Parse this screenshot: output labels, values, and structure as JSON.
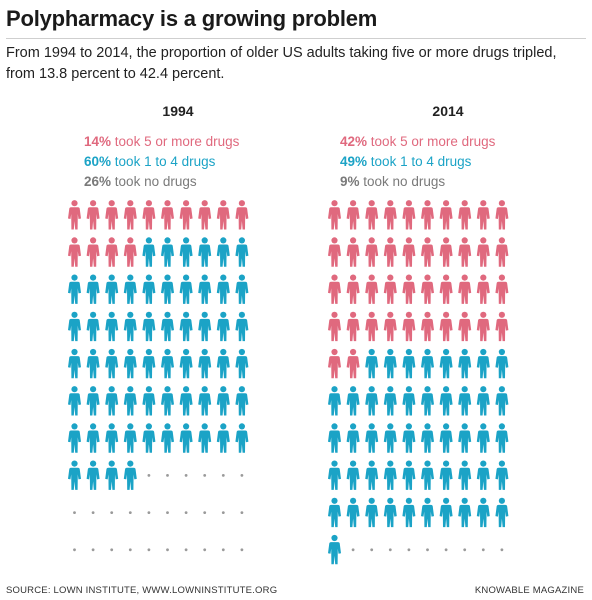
{
  "title": "Polypharmacy is a growing problem",
  "subtitle": "From 1994 to 2014, the proportion of older US adults taking five or more drugs tripled, from 13.8 percent to 42.4 percent.",
  "colors": {
    "five_plus": "#e0697e",
    "one_to_four": "#1ba3c6",
    "none": "#7a7a7a",
    "dot": "#9a9a9a"
  },
  "chart_data": [
    {
      "type": "pictogram",
      "title": "1994",
      "categories": [
        "took 5 or more drugs",
        "took 1 to 4 drugs",
        "took no drugs"
      ],
      "labels": [
        "14%",
        "60%",
        "26%"
      ],
      "values": [
        14,
        60,
        26
      ],
      "total": 100,
      "columns": 10
    },
    {
      "type": "pictogram",
      "title": "2014",
      "categories": [
        "took 5 or more drugs",
        "took 1 to 4 drugs",
        "took no drugs"
      ],
      "labels": [
        "42%",
        "49%",
        "9%"
      ],
      "values": [
        42,
        49,
        9
      ],
      "total": 100,
      "columns": 10
    }
  ],
  "footer": {
    "source": "SOURCE: LOWN INSTITUTE, WWW.LOWNINSTITUTE.ORG",
    "credit": "KNOWABLE MAGAZINE"
  }
}
